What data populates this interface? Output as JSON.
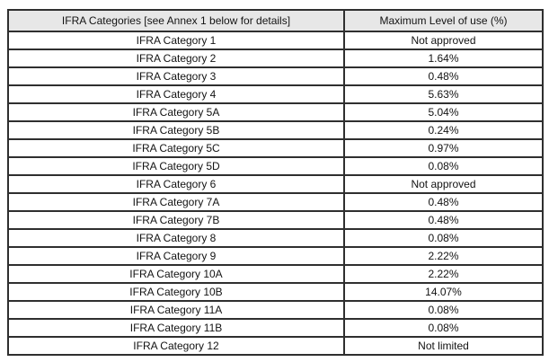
{
  "table": {
    "headers": {
      "category": "IFRA Categories [see Annex 1 below for details]",
      "max_level": "Maximum Level of use (%)"
    },
    "rows": [
      {
        "category": "IFRA Category 1",
        "max_level": "Not approved"
      },
      {
        "category": "IFRA Category 2",
        "max_level": "1.64%"
      },
      {
        "category": "IFRA Category 3",
        "max_level": "0.48%"
      },
      {
        "category": "IFRA Category 4",
        "max_level": "5.63%"
      },
      {
        "category": "IFRA Category 5A",
        "max_level": "5.04%"
      },
      {
        "category": "IFRA Category 5B",
        "max_level": "0.24%"
      },
      {
        "category": "IFRA Category 5C",
        "max_level": "0.97%"
      },
      {
        "category": "IFRA Category 5D",
        "max_level": "0.08%"
      },
      {
        "category": "IFRA Category 6",
        "max_level": "Not approved"
      },
      {
        "category": "IFRA Category 7A",
        "max_level": "0.48%"
      },
      {
        "category": "IFRA Category 7B",
        "max_level": "0.48%"
      },
      {
        "category": "IFRA Category 8",
        "max_level": "0.08%"
      },
      {
        "category": "IFRA Category 9",
        "max_level": "2.22%"
      },
      {
        "category": "IFRA Category 10A",
        "max_level": "2.22%"
      },
      {
        "category": "IFRA Category 10B",
        "max_level": "14.07%"
      },
      {
        "category": "IFRA Category 11A",
        "max_level": "0.08%"
      },
      {
        "category": "IFRA Category 11B",
        "max_level": "0.08%"
      },
      {
        "category": "IFRA Category 12",
        "max_level": "Not limited"
      }
    ],
    "colors": {
      "header_bg": "#e7e7e7",
      "border": "#2f2f2f",
      "text": "#131313"
    }
  }
}
